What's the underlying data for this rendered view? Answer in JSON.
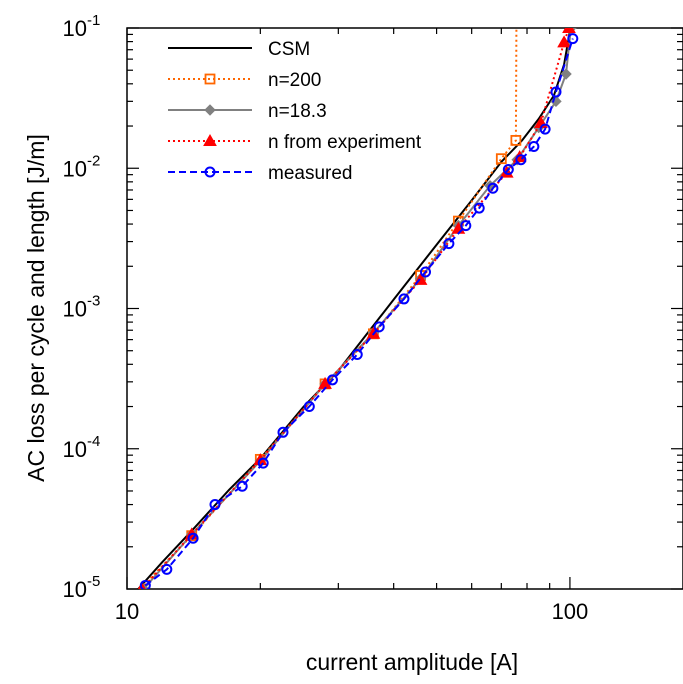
{
  "chart_data": {
    "type": "line",
    "xscale": "log",
    "yscale": "log",
    "xlim": [
      10,
      180
    ],
    "ylim": [
      1e-05,
      0.1
    ],
    "xlabel": "current amplitude [A]",
    "ylabel": "AC loss per cycle and length [J/m]",
    "x_ticks": [
      {
        "value": 10,
        "label": "10"
      },
      {
        "value": 100,
        "label": "100"
      }
    ],
    "y_ticks": [
      {
        "value": 1e-05,
        "base": "10",
        "exp": "-5"
      },
      {
        "value": 0.0001,
        "base": "10",
        "exp": "-4"
      },
      {
        "value": 0.001,
        "base": "10",
        "exp": "-3"
      },
      {
        "value": 0.01,
        "base": "10",
        "exp": "-2"
      },
      {
        "value": 0.1,
        "base": "10",
        "exp": "-1"
      }
    ],
    "legend_position": "top-left",
    "series": [
      {
        "name": "CSM",
        "color": "#000000",
        "dash": "solid",
        "marker": "none",
        "x": [
          10.6,
          12,
          14,
          17,
          20,
          25,
          30,
          40,
          50,
          60,
          70,
          75,
          78,
          85,
          92,
          97,
          100
        ],
        "y": [
          1e-05,
          1.55e-05,
          2.6e-05,
          5.1e-05,
          8.5e-05,
          0.000198,
          0.00036,
          0.00116,
          0.00285,
          0.0059,
          0.0111,
          0.0139,
          0.0158,
          0.0225,
          0.033,
          0.055,
          0.095
        ]
      },
      {
        "name": "n=200",
        "color": "#ff6600",
        "dash": "dotted",
        "marker": "square",
        "x": [
          10.7,
          14,
          20,
          28,
          36,
          46,
          56,
          70,
          75.5,
          75.7
        ],
        "y": [
          1e-05,
          2.4e-05,
          8.4e-05,
          0.00029,
          0.00066,
          0.00172,
          0.0042,
          0.0117,
          0.0158,
          0.1
        ],
        "marker_x": [
          14,
          20,
          28,
          36,
          46,
          56,
          70,
          75.5
        ],
        "marker_y": [
          2.4e-05,
          8.4e-05,
          0.00029,
          0.00066,
          0.00172,
          0.0042,
          0.0117,
          0.0158
        ]
      },
      {
        "name": "n=18.3",
        "color": "#808080",
        "dash": "solid",
        "marker": "diamond",
        "x": [
          10.9,
          14,
          20,
          28,
          36,
          46,
          56,
          66,
          76,
          85,
          93,
          98,
          100.5
        ],
        "y": [
          1e-05,
          2.45e-05,
          8.2e-05,
          0.00029,
          0.00067,
          0.00163,
          0.0039,
          0.0075,
          0.0115,
          0.0195,
          0.03,
          0.047,
          0.1
        ]
      },
      {
        "name": "n from experiment",
        "color": "#ff0000",
        "dash": "dotted",
        "marker": "triangle",
        "x": [
          10.8,
          14,
          20,
          28,
          36,
          46,
          56,
          72,
          77,
          86,
          97,
          99.5
        ],
        "y": [
          1e-05,
          2.45e-05,
          8.3e-05,
          0.00029,
          0.00066,
          0.0016,
          0.0037,
          0.0093,
          0.012,
          0.021,
          0.079,
          0.1
        ]
      },
      {
        "name": "measured",
        "color": "#0000ff",
        "dash": "dashed",
        "marker": "circle",
        "x": [
          11,
          12.3,
          14.1,
          15.8,
          18.2,
          20.3,
          22.5,
          25.8,
          29.1,
          33.1,
          37.1,
          42.2,
          47.2,
          53.3,
          58.2,
          62.4,
          67,
          72.6,
          77.5,
          82.9,
          87.9,
          93,
          101.5
        ],
        "y": [
          1.06e-05,
          1.38e-05,
          2.3e-05,
          4e-05,
          5.4e-05,
          7.9e-05,
          0.000131,
          0.0002,
          0.00031,
          0.00047,
          0.00074,
          0.00117,
          0.00182,
          0.0029,
          0.0039,
          0.0052,
          0.0072,
          0.0098,
          0.0115,
          0.0143,
          0.019,
          0.035,
          0.084
        ]
      }
    ]
  }
}
